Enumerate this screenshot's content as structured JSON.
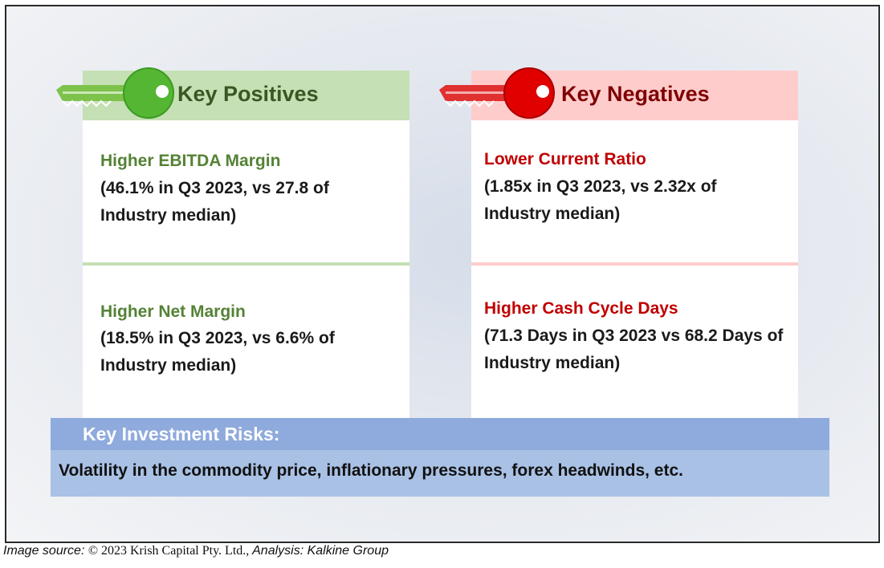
{
  "positives": {
    "heading": "Key Positives",
    "accent": "#4aa13a",
    "items": [
      {
        "title": "Higher EBITDA Margin",
        "desc": "(46.1% in Q3 2023, vs 27.8 of Industry median)"
      },
      {
        "title": "Higher Net Margin",
        "desc": "(18.5% in Q3 2023, vs 6.6% of Industry median)"
      }
    ]
  },
  "negatives": {
    "heading": "Key Negatives",
    "accent": "#c00000",
    "items": [
      {
        "title": "Lower Current Ratio",
        "desc": "(1.85x in Q3 2023, vs 2.32x of Industry median)"
      },
      {
        "title": "Higher Cash Cycle Days",
        "desc": "(71.3 Days in Q3 2023 vs 68.2 Days of Industry median)"
      }
    ]
  },
  "risks": {
    "heading": "Key Investment Risks:",
    "text": "Volatility in the commodity price, inflationary pressures, forex headwinds, etc."
  },
  "source": {
    "prefix": "Image source: ",
    "copyright": "© 2023 Krish Capital Pty. Ltd.,",
    "analysis": " Analysis: Kalkine Group"
  }
}
